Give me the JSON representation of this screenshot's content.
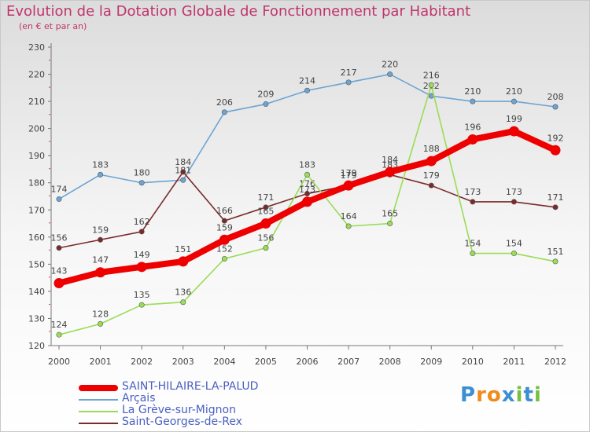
{
  "title": "Evolution de la Dotation Globale de Fonctionnement par Habitant",
  "subtitle": "(en € et par an)",
  "chart_data": {
    "type": "line",
    "title": "Evolution de la Dotation Globale de Fonctionnement par Habitant",
    "subtitle": "(en € et par an)",
    "xlabel": "",
    "ylabel": "",
    "categories": [
      "2000",
      "2001",
      "2002",
      "2003",
      "2004",
      "2005",
      "2006",
      "2007",
      "2008",
      "2009",
      "2010",
      "2011",
      "2012"
    ],
    "ylim": [
      120,
      230
    ],
    "yticks": [
      120,
      130,
      140,
      150,
      160,
      170,
      180,
      190,
      200,
      210,
      220,
      230
    ],
    "grid": false,
    "legend_position": "bottom-left",
    "series": [
      {
        "name": "SAINT-HILAIRE-LA-PALUD",
        "color": "#ee0000",
        "values": [
          143,
          147,
          149,
          151,
          159,
          165,
          173,
          179,
          184,
          188,
          196,
          199,
          192
        ]
      },
      {
        "name": "Arçais",
        "color": "#6da4d2",
        "values": [
          174,
          183,
          180,
          181,
          206,
          209,
          214,
          217,
          220,
          212,
          210,
          210,
          208
        ]
      },
      {
        "name": "La Grève-sur-Mignon",
        "color": "#99dd55",
        "values": [
          124,
          128,
          135,
          136,
          152,
          156,
          183,
          164,
          165,
          216,
          154,
          154,
          151
        ]
      },
      {
        "name": "Saint-Georges-de-Rex",
        "color": "#7a2a2a",
        "values": [
          156,
          159,
          162,
          184,
          166,
          171,
          176,
          179,
          183,
          179,
          173,
          173,
          171
        ]
      }
    ]
  },
  "logo": {
    "letters": [
      {
        "ch": "P",
        "color": "#3c8fd0"
      },
      {
        "ch": "r",
        "color": "#f08a1c"
      },
      {
        "ch": "o",
        "color": "#f08a1c"
      },
      {
        "ch": "x",
        "color": "#3c8fd0"
      },
      {
        "ch": "i",
        "color": "#78c040"
      },
      {
        "ch": "t",
        "color": "#3c8fd0"
      },
      {
        "ch": "i",
        "color": "#78c040"
      }
    ]
  }
}
